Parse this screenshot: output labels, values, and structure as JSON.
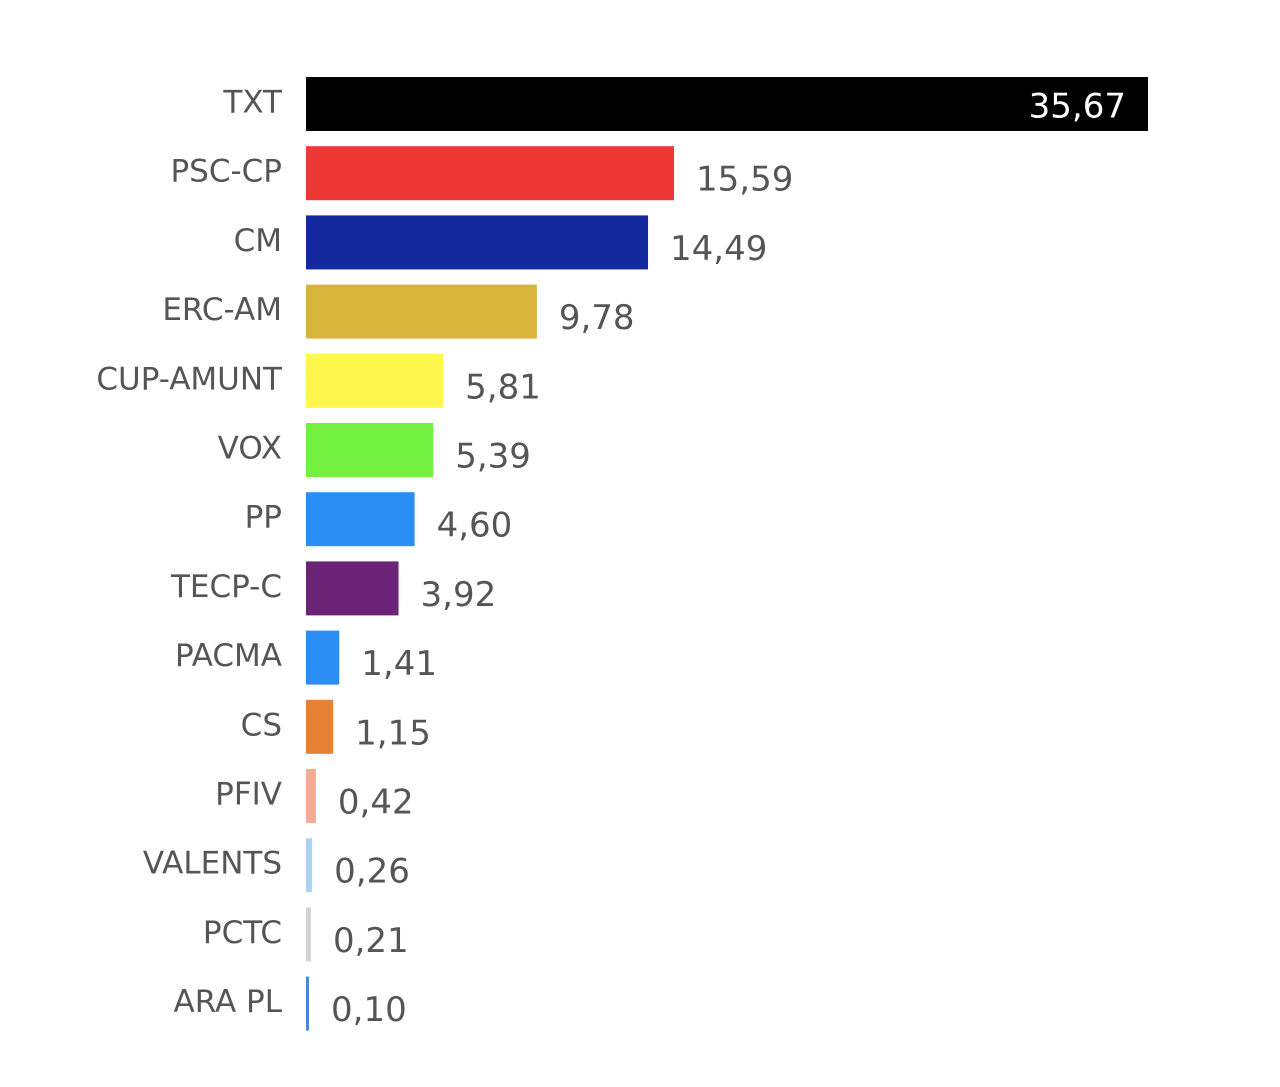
{
  "chart_data": {
    "type": "bar",
    "orientation": "horizontal",
    "categories": [
      "TXT",
      "PSC-CP",
      "CM",
      "ERC-AM",
      "CUP-AMUNT",
      "VOX",
      "PP",
      "TECP-C",
      "PACMA",
      "CS",
      "PFIV",
      "VALENTS",
      "PCTC",
      "ARA PL"
    ],
    "values": [
      35.67,
      15.59,
      14.49,
      9.78,
      5.81,
      5.39,
      4.6,
      3.92,
      1.41,
      1.15,
      0.42,
      0.26,
      0.21,
      0.1
    ],
    "value_labels": [
      "35,67",
      "15,59",
      "14,49",
      "9,78",
      "5,81",
      "5,39",
      "4,60",
      "3,92",
      "1,41",
      "1,15",
      "0,42",
      "0,26",
      "0,21",
      "0,10"
    ],
    "colors": [
      "#000000",
      "#ee3834",
      "#14289e",
      "#d8b43d",
      "#fff64e",
      "#74f040",
      "#2b8ef5",
      "#6b2478",
      "#2b8ef5",
      "#e68035",
      "#f4ad92",
      "#a9d3f7",
      "#d3d3d3",
      "#4c86d6"
    ]
  }
}
